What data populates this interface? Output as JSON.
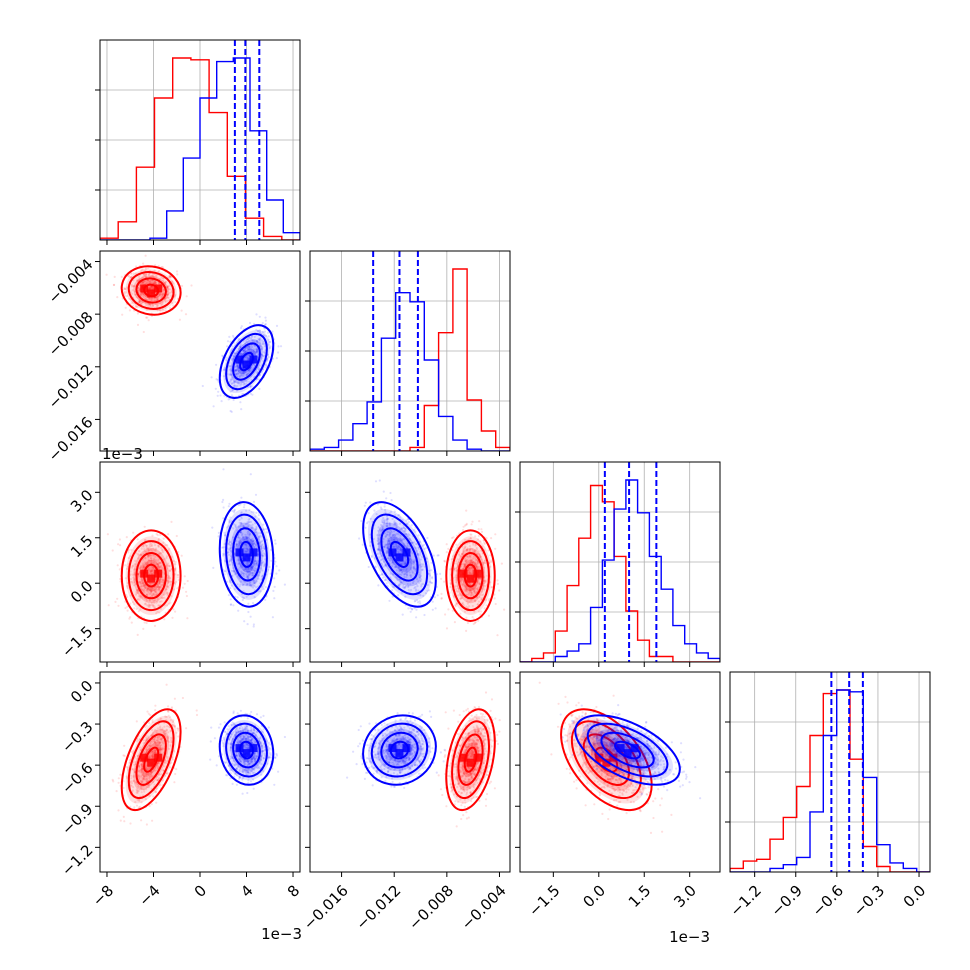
{
  "chart_data": {
    "type": "corner",
    "title": "",
    "series": [
      {
        "name": "",
        "color": "#ff0000",
        "mean": [
          -4.2,
          -0.0062,
          0.25,
          -0.56
        ],
        "sd": [
          1.1,
          0.0008,
          0.65,
          0.16
        ]
      },
      {
        "name": "",
        "color": "#0000ff",
        "mean": [
          4.0,
          -0.0116,
          0.95,
          -0.49
        ],
        "sd": [
          1.0,
          0.0012,
          0.75,
          0.11
        ]
      }
    ],
    "quantile_lines": [
      [
        3.0,
        3.9,
        5.1
      ],
      [
        -0.0136,
        -0.0116,
        -0.0102
      ],
      [
        0.2,
        1.0,
        1.9
      ],
      [
        -0.64,
        -0.51,
        -0.41
      ]
    ],
    "parameters": [
      {
        "range": [
          -8.6,
          8.6
        ],
        "ticks": [
          -8,
          -4,
          0,
          4,
          8
        ],
        "tick_labels": [
          "−8",
          "−4",
          "0",
          "4",
          "8"
        ],
        "offset_label": "1e−3"
      },
      {
        "range": [
          -0.0184,
          -0.0032
        ],
        "ticks": [
          -0.016,
          -0.012,
          -0.008,
          -0.004
        ],
        "tick_labels": [
          "−0.016",
          "−0.012",
          "−0.008",
          "−0.004"
        ],
        "offset_label": ""
      },
      {
        "range": [
          -2.6,
          4.0
        ],
        "ticks": [
          -1.5,
          0.0,
          1.5,
          3.0
        ],
        "tick_labels": [
          "−1.5",
          "0.0",
          "1.5",
          "3.0"
        ],
        "offset_label": "1e−3"
      },
      {
        "range": [
          -1.38,
          0.08
        ],
        "ticks": [
          -1.2,
          -0.9,
          -0.6,
          -0.3,
          0.0
        ],
        "tick_labels": [
          "−1.2",
          "−0.9",
          "−0.6",
          "−0.3",
          "0.0"
        ],
        "offset_label": ""
      }
    ],
    "red_hist_1d": [
      [
        0.01,
        0.1,
        0.4,
        0.78,
        1.0,
        0.99,
        0.7,
        0.35,
        0.12,
        0.02,
        0.0
      ],
      [
        0.0,
        0.0,
        0.0,
        0.0,
        0.0,
        0.0,
        0.0,
        0.02,
        0.25,
        0.65,
        1.0,
        0.28,
        0.11,
        0.02
      ],
      [
        0.0,
        0.02,
        0.05,
        0.17,
        0.42,
        0.68,
        0.97,
        0.88,
        0.58,
        0.28,
        0.12,
        0.03,
        0.03,
        0.0,
        0.0,
        0.0,
        0.0
      ],
      [
        0.02,
        0.06,
        0.07,
        0.18,
        0.3,
        0.47,
        0.75,
        0.98,
        1.0,
        0.62,
        0.14,
        0.03,
        0.0,
        0.0,
        0.0
      ]
    ],
    "blue_hist_1d": [
      [
        0.0,
        0.0,
        0.0,
        0.01,
        0.16,
        0.45,
        0.78,
        0.98,
        1.0,
        0.6,
        0.22,
        0.04
      ],
      [
        0.01,
        0.02,
        0.06,
        0.15,
        0.27,
        0.62,
        0.87,
        0.82,
        0.5,
        0.19,
        0.06,
        0.01,
        0.0,
        0.0
      ],
      [
        0.0,
        0.0,
        0.0,
        0.03,
        0.06,
        0.1,
        0.3,
        0.56,
        0.84,
        1.0,
        0.82,
        0.58,
        0.4,
        0.2,
        0.1,
        0.05,
        0.02
      ],
      [
        0.0,
        0.0,
        0.0,
        0.02,
        0.04,
        0.08,
        0.33,
        0.75,
        1.0,
        0.99,
        0.52,
        0.15,
        0.05,
        0.02,
        0.0
      ]
    ],
    "grid": true,
    "legend": "none"
  }
}
